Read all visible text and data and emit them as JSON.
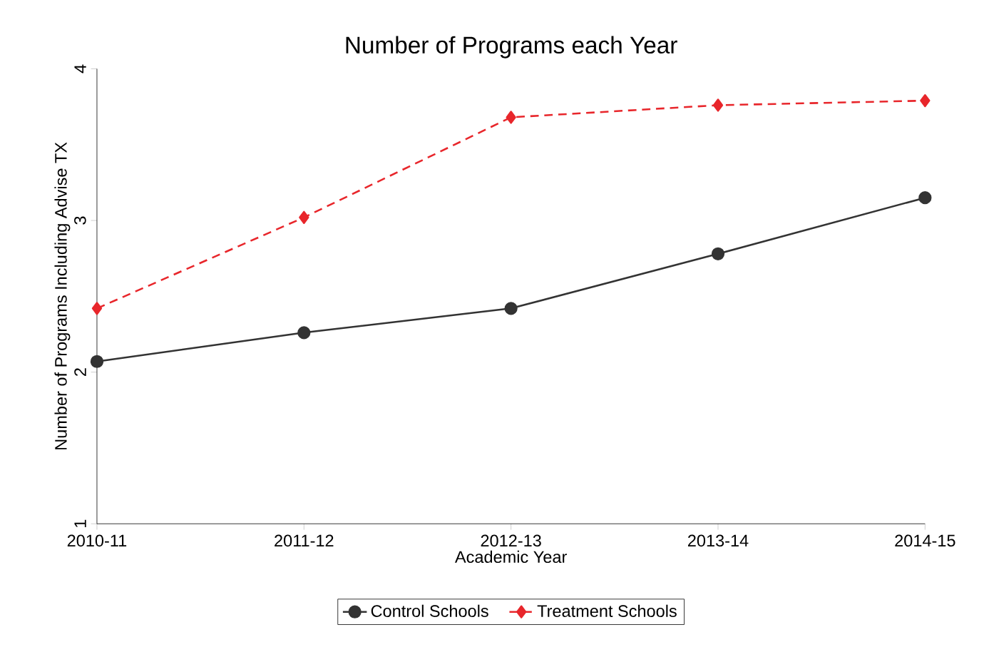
{
  "chart_data": {
    "type": "line",
    "title": "Number of Programs each Year",
    "xlabel": "Academic Year",
    "ylabel": "Number of Programs Including Advise TX",
    "categories": [
      "2010-11",
      "2011-12",
      "2012-13",
      "2013-14",
      "2014-15"
    ],
    "series": [
      {
        "name": "Control Schools",
        "color": "#333333",
        "marker": "circle",
        "line_style": "solid",
        "values": [
          2.07,
          2.26,
          2.42,
          2.78,
          3.15
        ]
      },
      {
        "name": "Treatment Schools",
        "color": "#e8262b",
        "marker": "diamond",
        "line_style": "dashed",
        "values": [
          2.42,
          3.02,
          3.68,
          3.76,
          3.79
        ]
      }
    ],
    "ylim": [
      1,
      4
    ],
    "yticks": [
      1,
      2,
      3,
      4
    ],
    "grid": false,
    "legend": "bottom"
  }
}
